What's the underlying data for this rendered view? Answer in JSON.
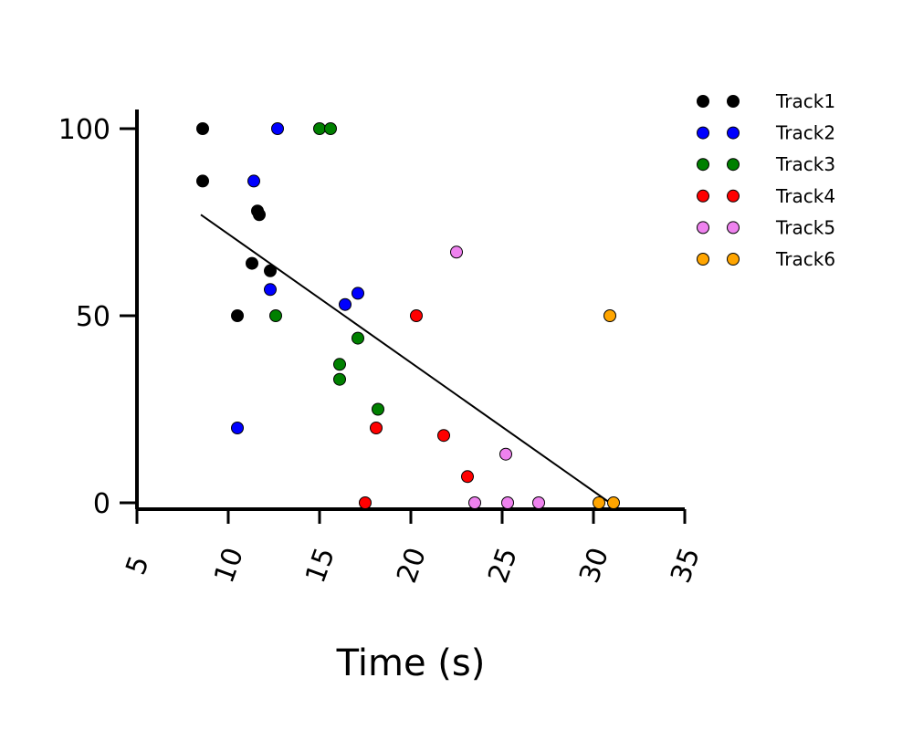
{
  "chart_data": {
    "type": "scatter",
    "xlabel": "Time (s)",
    "ylabel": "",
    "xlim": [
      5,
      35
    ],
    "ylim": [
      0,
      100
    ],
    "xticks": [
      "5",
      "10",
      "15",
      "20",
      "25",
      "30",
      "35"
    ],
    "yticks": [
      "0",
      "50",
      "100"
    ],
    "grid": false,
    "legend_position": "top-right",
    "series": [
      {
        "name": "Track1",
        "color": "#000000",
        "points": [
          [
            8.6,
            100
          ],
          [
            8.6,
            86
          ],
          [
            10.5,
            50
          ],
          [
            11.3,
            64
          ],
          [
            11.6,
            78
          ],
          [
            11.7,
            77
          ],
          [
            12.3,
            62
          ]
        ]
      },
      {
        "name": "Track2",
        "color": "#0000ff",
        "points": [
          [
            12.7,
            100
          ],
          [
            11.4,
            86
          ],
          [
            12.3,
            57
          ],
          [
            16.4,
            53
          ],
          [
            17.1,
            56
          ],
          [
            10.5,
            20
          ]
        ]
      },
      {
        "name": "Track3",
        "color": "#008000",
        "points": [
          [
            15.0,
            100
          ],
          [
            15.6,
            100
          ],
          [
            12.6,
            50
          ],
          [
            17.1,
            44
          ],
          [
            16.1,
            37
          ],
          [
            16.1,
            33
          ],
          [
            18.2,
            25
          ]
        ]
      },
      {
        "name": "Track4",
        "color": "#ff0000",
        "points": [
          [
            20.3,
            50
          ],
          [
            18.1,
            20
          ],
          [
            21.8,
            18
          ],
          [
            23.1,
            7
          ],
          [
            17.5,
            0
          ]
        ]
      },
      {
        "name": "Track5",
        "color": "#ee82ee",
        "points": [
          [
            22.5,
            67
          ],
          [
            25.2,
            13
          ],
          [
            23.5,
            0
          ],
          [
            25.3,
            0
          ],
          [
            27.0,
            0
          ]
        ]
      },
      {
        "name": "Track6",
        "color": "#ffa500",
        "points": [
          [
            30.9,
            50
          ],
          [
            30.3,
            0
          ],
          [
            31.1,
            0
          ]
        ]
      }
    ],
    "fit_line": {
      "color": "#000000",
      "points": [
        [
          8.5,
          77
        ],
        [
          30.9,
          0
        ]
      ]
    }
  }
}
